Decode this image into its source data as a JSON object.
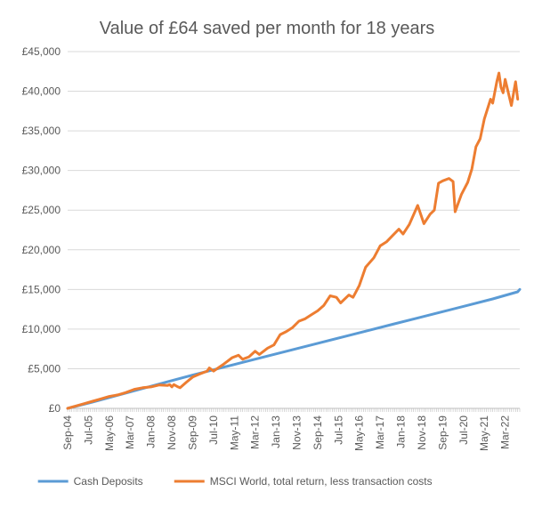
{
  "chart_data": {
    "type": "line",
    "title": "Value of £64 saved per month for 18 years",
    "xlabel": "",
    "ylabel": "",
    "ylim": [
      0,
      45000
    ],
    "y_ticks": [
      0,
      5000,
      10000,
      15000,
      20000,
      25000,
      30000,
      35000,
      40000,
      45000
    ],
    "y_tick_labels": [
      "£0",
      "£5,000",
      "£10,000",
      "£15,000",
      "£20,000",
      "£25,000",
      "£30,000",
      "£35,000",
      "£40,000",
      "£45,000"
    ],
    "x_start": "Sep-04",
    "x_end": "Oct-22",
    "x_tick_labels": [
      "Sep-04",
      "Jul-05",
      "May-06",
      "Mar-07",
      "Jan-08",
      "Nov-08",
      "Sep-09",
      "Jul-10",
      "May-11",
      "Mar-12",
      "Jan-13",
      "Nov-13",
      "Sep-14",
      "Jul-15",
      "May-16",
      "Mar-17",
      "Jan-18",
      "Nov-18",
      "Sep-19",
      "Jul-20",
      "May-21",
      "Mar-22"
    ],
    "grid": "horizontal",
    "legend_position": "bottom",
    "series": [
      {
        "name": "Cash Deposits",
        "color": "#5B9BD5",
        "points": [
          [
            "Sep-04",
            0
          ],
          [
            "Sep-05",
            800
          ],
          [
            "Sep-06",
            1650
          ],
          [
            "Sep-07",
            2500
          ],
          [
            "Sep-08",
            3350
          ],
          [
            "Sep-09",
            4200
          ],
          [
            "Sep-10",
            5000
          ],
          [
            "Sep-11",
            5800
          ],
          [
            "Sep-12",
            6600
          ],
          [
            "Sep-13",
            7400
          ],
          [
            "Sep-14",
            8200
          ],
          [
            "Sep-15",
            9000
          ],
          [
            "Sep-16",
            9800
          ],
          [
            "Sep-17",
            10600
          ],
          [
            "Sep-18",
            11400
          ],
          [
            "Sep-19",
            12200
          ],
          [
            "Sep-20",
            13000
          ],
          [
            "Sep-21",
            13800
          ],
          [
            "Sep-22",
            14700
          ],
          [
            "Oct-22",
            15000
          ]
        ]
      },
      {
        "name": "MSCI World, total return, less transaction costs",
        "color": "#ED7D31",
        "points": [
          [
            "Sep-04",
            0
          ],
          [
            "Jan-05",
            300
          ],
          [
            "May-05",
            600
          ],
          [
            "Sep-05",
            900
          ],
          [
            "Jan-06",
            1200
          ],
          [
            "May-06",
            1500
          ],
          [
            "Sep-06",
            1700
          ],
          [
            "Jan-07",
            2000
          ],
          [
            "May-07",
            2400
          ],
          [
            "Sep-07",
            2600
          ],
          [
            "Jan-08",
            2700
          ],
          [
            "May-08",
            2950
          ],
          [
            "Sep-08",
            2900
          ],
          [
            "Oct-08",
            3000
          ],
          [
            "Nov-08",
            2700
          ],
          [
            "Dec-08",
            3000
          ],
          [
            "Feb-09",
            2700
          ],
          [
            "Mar-09",
            2600
          ],
          [
            "Jun-09",
            3300
          ],
          [
            "Sep-09",
            3950
          ],
          [
            "Dec-09",
            4300
          ],
          [
            "Apr-10",
            4700
          ],
          [
            "May-10",
            5100
          ],
          [
            "Jul-10",
            4700
          ],
          [
            "Dec-10",
            5600
          ],
          [
            "Apr-11",
            6400
          ],
          [
            "Jul-11",
            6700
          ],
          [
            "Sep-11",
            6200
          ],
          [
            "Dec-11",
            6500
          ],
          [
            "Mar-12",
            7200
          ],
          [
            "May-12",
            6800
          ],
          [
            "Sep-12",
            7600
          ],
          [
            "Dec-12",
            8000
          ],
          [
            "Mar-13",
            9300
          ],
          [
            "Jun-13",
            9700
          ],
          [
            "Sep-13",
            10200
          ],
          [
            "Dec-13",
            11000
          ],
          [
            "Mar-14",
            11300
          ],
          [
            "Jun-14",
            11800
          ],
          [
            "Sep-14",
            12300
          ],
          [
            "Dec-14",
            13000
          ],
          [
            "Mar-15",
            14200
          ],
          [
            "Jun-15",
            14000
          ],
          [
            "Aug-15",
            13300
          ],
          [
            "Dec-15",
            14300
          ],
          [
            "Feb-16",
            14000
          ],
          [
            "May-16",
            15500
          ],
          [
            "Aug-16",
            17800
          ],
          [
            "Dec-16",
            19000
          ],
          [
            "Mar-17",
            20500
          ],
          [
            "Jun-17",
            21000
          ],
          [
            "Sep-17",
            21800
          ],
          [
            "Dec-17",
            22600
          ],
          [
            "Feb-18",
            22000
          ],
          [
            "May-18",
            23200
          ],
          [
            "Sep-18",
            25600
          ],
          [
            "Dec-18",
            23300
          ],
          [
            "Mar-19",
            24500
          ],
          [
            "May-19",
            25000
          ],
          [
            "Jul-19",
            28400
          ],
          [
            "Sep-19",
            28700
          ],
          [
            "Dec-19",
            29000
          ],
          [
            "Feb-20",
            28600
          ],
          [
            "Mar-20",
            24800
          ],
          [
            "Jun-20",
            27000
          ],
          [
            "Sep-20",
            28500
          ],
          [
            "Nov-20",
            30200
          ],
          [
            "Jan-21",
            33000
          ],
          [
            "Mar-21",
            34000
          ],
          [
            "May-21",
            36500
          ],
          [
            "Aug-21",
            39000
          ],
          [
            "Sep-21",
            38500
          ],
          [
            "Nov-21",
            41200
          ],
          [
            "Dec-21",
            42300
          ],
          [
            "Jan-22",
            40500
          ],
          [
            "Feb-22",
            39800
          ],
          [
            "Mar-22",
            41500
          ],
          [
            "Jun-22",
            38200
          ],
          [
            "Aug-22",
            41200
          ],
          [
            "Sep-22",
            39000
          ]
        ]
      }
    ]
  }
}
